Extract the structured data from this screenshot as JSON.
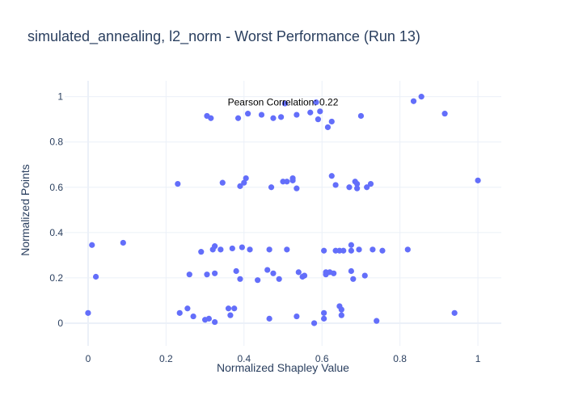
{
  "chart_data": {
    "type": "scatter",
    "title": "simulated_annealing, l2_norm - Worst Performance (Run 13)",
    "xlabel": "Normalized Shapley Value",
    "ylabel": "Normalized Points",
    "xlim": [
      -0.06,
      1.06
    ],
    "ylim": [
      -0.1,
      1.07
    ],
    "x_ticks": [
      0,
      0.2,
      0.4,
      0.6,
      0.8,
      1
    ],
    "y_ticks": [
      0,
      0.2,
      0.4,
      0.6,
      0.8,
      1
    ],
    "x_tick_labels": [
      "0",
      "0.2",
      "0.4",
      "0.6",
      "0.8",
      "1"
    ],
    "y_tick_labels": [
      "0",
      "0.2",
      "0.4",
      "0.6",
      "0.8",
      "1"
    ],
    "grid": true,
    "marker_color": "#636efa",
    "annotation": {
      "text": "Pearson Correlation: 0.22",
      "x": 0.5,
      "y": 0.975
    },
    "points": [
      [
        0.0,
        0.045
      ],
      [
        0.01,
        0.345
      ],
      [
        0.02,
        0.205
      ],
      [
        0.09,
        0.355
      ],
      [
        0.23,
        0.615
      ],
      [
        0.235,
        0.045
      ],
      [
        0.255,
        0.065
      ],
      [
        0.26,
        0.215
      ],
      [
        0.27,
        0.03
      ],
      [
        0.29,
        0.315
      ],
      [
        0.3,
        0.015
      ],
      [
        0.305,
        0.215
      ],
      [
        0.305,
        0.915
      ],
      [
        0.31,
        0.02
      ],
      [
        0.315,
        0.905
      ],
      [
        0.32,
        0.325
      ],
      [
        0.325,
        0.005
      ],
      [
        0.325,
        0.22
      ],
      [
        0.325,
        0.34
      ],
      [
        0.34,
        0.325
      ],
      [
        0.345,
        0.62
      ],
      [
        0.36,
        0.065
      ],
      [
        0.365,
        0.035
      ],
      [
        0.37,
        0.33
      ],
      [
        0.375,
        0.065
      ],
      [
        0.38,
        0.23
      ],
      [
        0.385,
        0.905
      ],
      [
        0.39,
        0.605
      ],
      [
        0.39,
        0.195
      ],
      [
        0.395,
        0.335
      ],
      [
        0.4,
        0.62
      ],
      [
        0.405,
        0.64
      ],
      [
        0.41,
        0.925
      ],
      [
        0.415,
        0.325
      ],
      [
        0.435,
        0.19
      ],
      [
        0.445,
        0.92
      ],
      [
        0.46,
        0.235
      ],
      [
        0.465,
        0.325
      ],
      [
        0.465,
        0.02
      ],
      [
        0.47,
        0.6
      ],
      [
        0.475,
        0.905
      ],
      [
        0.475,
        0.22
      ],
      [
        0.49,
        0.195
      ],
      [
        0.495,
        0.91
      ],
      [
        0.5,
        0.625
      ],
      [
        0.505,
        0.97
      ],
      [
        0.51,
        0.625
      ],
      [
        0.51,
        0.325
      ],
      [
        0.525,
        0.63
      ],
      [
        0.525,
        0.64
      ],
      [
        0.535,
        0.92
      ],
      [
        0.535,
        0.03
      ],
      [
        0.535,
        0.595
      ],
      [
        0.54,
        0.225
      ],
      [
        0.55,
        0.205
      ],
      [
        0.555,
        0.21
      ],
      [
        0.57,
        0.93
      ],
      [
        0.58,
        0.0
      ],
      [
        0.585,
        0.975
      ],
      [
        0.59,
        0.9
      ],
      [
        0.595,
        0.935
      ],
      [
        0.605,
        0.02
      ],
      [
        0.605,
        0.045
      ],
      [
        0.605,
        0.32
      ],
      [
        0.61,
        0.215
      ],
      [
        0.61,
        0.225
      ],
      [
        0.615,
        0.865
      ],
      [
        0.62,
        0.225
      ],
      [
        0.625,
        0.65
      ],
      [
        0.625,
        0.89
      ],
      [
        0.63,
        0.22
      ],
      [
        0.635,
        0.32
      ],
      [
        0.635,
        0.61
      ],
      [
        0.645,
        0.32
      ],
      [
        0.645,
        0.075
      ],
      [
        0.65,
        0.035
      ],
      [
        0.65,
        0.06
      ],
      [
        0.655,
        0.32
      ],
      [
        0.67,
        0.6
      ],
      [
        0.675,
        0.23
      ],
      [
        0.675,
        0.32
      ],
      [
        0.675,
        0.345
      ],
      [
        0.68,
        0.195
      ],
      [
        0.685,
        0.625
      ],
      [
        0.69,
        0.615
      ],
      [
        0.69,
        0.595
      ],
      [
        0.695,
        0.325
      ],
      [
        0.7,
        0.915
      ],
      [
        0.71,
        0.21
      ],
      [
        0.715,
        0.6
      ],
      [
        0.725,
        0.615
      ],
      [
        0.73,
        0.325
      ],
      [
        0.74,
        0.01
      ],
      [
        0.755,
        0.32
      ],
      [
        0.82,
        0.325
      ],
      [
        0.835,
        0.98
      ],
      [
        0.855,
        1.0
      ],
      [
        0.915,
        0.925
      ],
      [
        0.94,
        0.045
      ],
      [
        1.0,
        0.63
      ]
    ]
  }
}
